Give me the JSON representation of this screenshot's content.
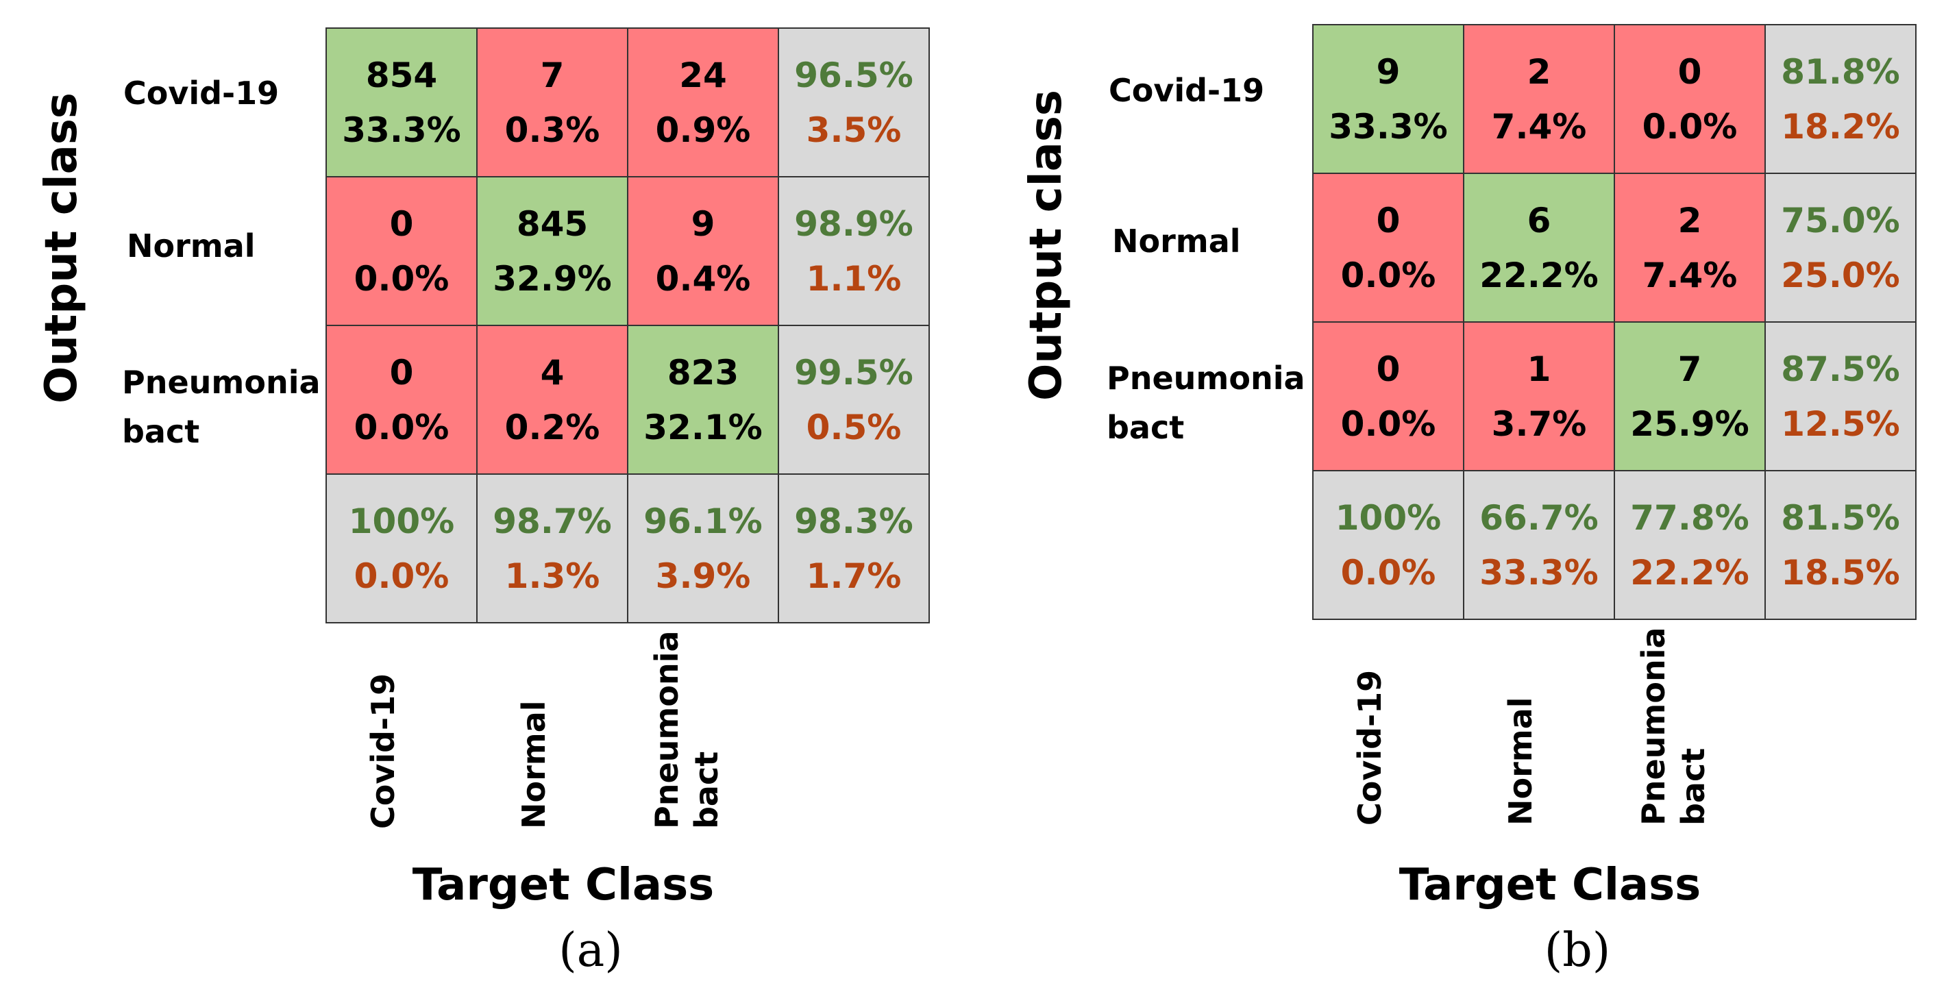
{
  "chart_data": [
    {
      "type": "table",
      "panel": "(a)",
      "ylabel": "Output class",
      "xlabel": "Target Class",
      "output_classes": [
        "Covid-19",
        "Normal",
        "Pneumonia bact"
      ],
      "target_classes": [
        "Covid-19",
        "Normal",
        "Pneumonia bact"
      ],
      "cells": [
        [
          {
            "count": "854",
            "pct": "33.3%"
          },
          {
            "count": "7",
            "pct": "0.3%"
          },
          {
            "count": "24",
            "pct": "0.9%"
          }
        ],
        [
          {
            "count": "0",
            "pct": "0.0%"
          },
          {
            "count": "845",
            "pct": "32.9%"
          },
          {
            "count": "9",
            "pct": "0.4%"
          }
        ],
        [
          {
            "count": "0",
            "pct": "0.0%"
          },
          {
            "count": "4",
            "pct": "0.2%"
          },
          {
            "count": "823",
            "pct": "32.1%"
          }
        ]
      ],
      "row_summary": [
        {
          "correct": "96.5%",
          "error": "3.5%"
        },
        {
          "correct": "98.9%",
          "error": "1.1%"
        },
        {
          "correct": "99.5%",
          "error": "0.5%"
        }
      ],
      "col_summary": [
        {
          "correct": "100%",
          "error": "0.0%"
        },
        {
          "correct": "98.7%",
          "error": "1.3%"
        },
        {
          "correct": "96.1%",
          "error": "3.9%"
        }
      ],
      "overall": {
        "correct": "98.3%",
        "error": "1.7%"
      },
      "colors": {
        "correct_cell": "#a9d18e",
        "error_cell": "#ff7c80",
        "summary_cell": "#d9d9d9",
        "summary_correct_text": "#4f7b3a",
        "summary_error_text": "#b64511"
      }
    },
    {
      "type": "table",
      "panel": "(b)",
      "ylabel": "Output class",
      "xlabel": "Target Class",
      "output_classes": [
        "Covid-19",
        "Normal",
        "Pneumonia bact"
      ],
      "target_classes": [
        "Covid-19",
        "Normal",
        "Pneumonia bact"
      ],
      "cells": [
        [
          {
            "count": "9",
            "pct": "33.3%"
          },
          {
            "count": "2",
            "pct": "7.4%"
          },
          {
            "count": "0",
            "pct": "0.0%"
          }
        ],
        [
          {
            "count": "0",
            "pct": "0.0%"
          },
          {
            "count": "6",
            "pct": "22.2%"
          },
          {
            "count": "2",
            "pct": "7.4%"
          }
        ],
        [
          {
            "count": "0",
            "pct": "0.0%"
          },
          {
            "count": "1",
            "pct": "3.7%"
          },
          {
            "count": "7",
            "pct": "25.9%"
          }
        ]
      ],
      "row_summary": [
        {
          "correct": "81.8%",
          "error": "18.2%"
        },
        {
          "correct": "75.0%",
          "error": "25.0%"
        },
        {
          "correct": "87.5%",
          "error": "12.5%"
        }
      ],
      "col_summary": [
        {
          "correct": "100%",
          "error": "0.0%"
        },
        {
          "correct": "66.7%",
          "error": "33.3%"
        },
        {
          "correct": "77.8%",
          "error": "22.2%"
        }
      ],
      "overall": {
        "correct": "81.5%",
        "error": "18.5%"
      },
      "colors": {
        "correct_cell": "#a9d18e",
        "error_cell": "#ff7c80",
        "summary_cell": "#d9d9d9",
        "summary_correct_text": "#4f7b3a",
        "summary_error_text": "#b64511"
      }
    }
  ]
}
